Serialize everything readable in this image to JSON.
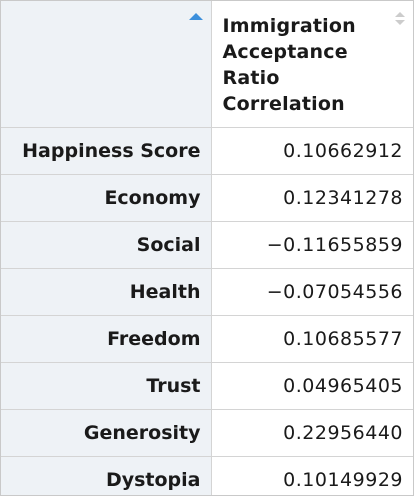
{
  "table": {
    "header": {
      "row_label": "",
      "column_label": "Immigration Acceptance Ratio Correlation"
    },
    "rows": [
      {
        "name": "Happiness Score",
        "value": "0.10662912"
      },
      {
        "name": "Economy",
        "value": "0.12341278"
      },
      {
        "name": "Social",
        "value": "−0.11655859"
      },
      {
        "name": "Health",
        "value": "−0.07054556"
      },
      {
        "name": "Freedom",
        "value": "0.10685577"
      },
      {
        "name": "Trust",
        "value": "0.04965405"
      },
      {
        "name": "Generosity",
        "value": "0.22956440"
      },
      {
        "name": "Dystopia",
        "value": "0.10149929"
      }
    ]
  },
  "colors": {
    "sort_active": "#3c8fdc",
    "sort_inactive": "#cccccc",
    "row_header_bg": "#eef2f6",
    "grid_line": "#d4d4d4"
  },
  "icons": {
    "row_sort": "sort-ascending-icon",
    "column_sort": "sort-unsorted-icon"
  }
}
